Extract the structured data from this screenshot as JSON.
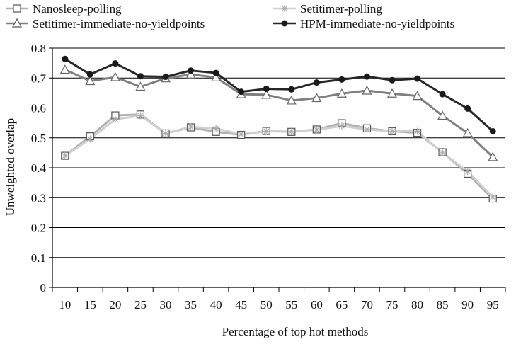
{
  "chart_data": {
    "type": "line",
    "xlabel": "Percentage of top hot methods",
    "ylabel": "Unweighted overlap",
    "ylim": [
      0,
      0.8
    ],
    "yticks": [
      "0",
      "0.1",
      "0.2",
      "0.3",
      "0.4",
      "0.5",
      "0.6",
      "0.7",
      "0.8"
    ],
    "grid": true,
    "legend": "top",
    "categories": [
      "10",
      "15",
      "20",
      "25",
      "30",
      "35",
      "40",
      "45",
      "50",
      "55",
      "60",
      "65",
      "70",
      "75",
      "80",
      "85",
      "90",
      "95"
    ],
    "series": [
      {
        "name": "Nanosleep-polling",
        "color": "#b0b0b0",
        "marker": "square",
        "values": [
          0.44,
          0.505,
          0.575,
          0.578,
          0.515,
          0.535,
          0.52,
          0.51,
          0.523,
          0.52,
          0.528,
          0.549,
          0.532,
          0.522,
          0.517,
          0.452,
          0.38,
          0.297
        ]
      },
      {
        "name": "Setitimer-polling",
        "color": "#d0d0d0",
        "marker": "asterisk",
        "values": [
          0.44,
          0.496,
          0.562,
          0.574,
          0.515,
          0.537,
          0.531,
          0.512,
          0.522,
          0.521,
          0.527,
          0.54,
          0.528,
          0.522,
          0.522,
          0.45,
          0.388,
          0.302
        ]
      },
      {
        "name": "Setitimer-immediate-no-yieldpoints",
        "color": "#808080",
        "marker": "triangle",
        "values": [
          0.728,
          0.69,
          0.703,
          0.671,
          0.699,
          0.712,
          0.702,
          0.646,
          0.644,
          0.625,
          0.633,
          0.648,
          0.658,
          0.648,
          0.64,
          0.574,
          0.516,
          0.436
        ]
      },
      {
        "name": "HPM-immediate-no-yieldpoints",
        "color": "#262626",
        "marker": "circle",
        "values": [
          0.764,
          0.712,
          0.749,
          0.706,
          0.704,
          0.725,
          0.717,
          0.654,
          0.664,
          0.662,
          0.685,
          0.695,
          0.705,
          0.693,
          0.698,
          0.646,
          0.598,
          0.522
        ]
      }
    ]
  }
}
